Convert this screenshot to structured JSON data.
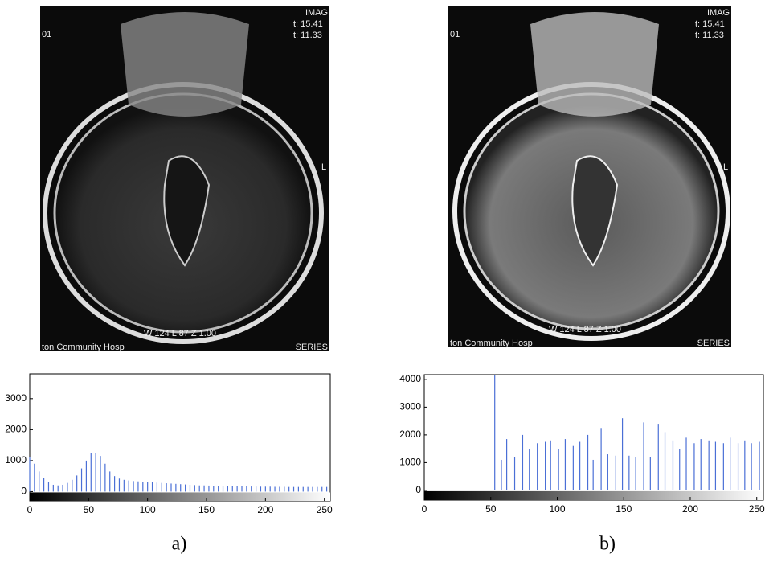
{
  "panels": [
    {
      "caption": "a)",
      "image_text": [
        "IMAG",
        "t: 15.41",
        "t: 11.33",
        "01",
        "L",
        "W 124  L 87  Z 1.00",
        "ton Community Hosp",
        "SERIES"
      ]
    },
    {
      "caption": "b)",
      "image_text": [
        "IMAG",
        "t: 15.41",
        "t: 11.33",
        "01",
        "L",
        "W 124  L 87  Z 1.00",
        "ton Community Hosp",
        "SERIES"
      ]
    }
  ],
  "chart_data": [
    {
      "type": "stem",
      "color": "#4a6fd6",
      "x": [
        0,
        4,
        8,
        12,
        16,
        20,
        24,
        28,
        32,
        36,
        40,
        44,
        48,
        52,
        56,
        60,
        64,
        68,
        72,
        76,
        80,
        84,
        88,
        92,
        96,
        100,
        104,
        108,
        112,
        116,
        120,
        124,
        128,
        132,
        136,
        140,
        144,
        148,
        152,
        156,
        160,
        164,
        168,
        172,
        176,
        180,
        184,
        188,
        192,
        196,
        200,
        204,
        208,
        212,
        216,
        220,
        224,
        228,
        232,
        236,
        240,
        244,
        248,
        252
      ],
      "values": [
        1100,
        900,
        650,
        450,
        300,
        220,
        200,
        220,
        280,
        380,
        520,
        750,
        1000,
        1250,
        1250,
        1150,
        900,
        650,
        500,
        420,
        380,
        360,
        340,
        330,
        320,
        310,
        300,
        290,
        280,
        270,
        260,
        250,
        240,
        230,
        220,
        210,
        200,
        200,
        195,
        190,
        185,
        180,
        180,
        175,
        175,
        170,
        170,
        165,
        165,
        160,
        160,
        160,
        155,
        155,
        155,
        150,
        150,
        150,
        150,
        150,
        150,
        150,
        150,
        150
      ],
      "xlim": [
        0,
        255
      ],
      "ylim": [
        -300,
        3800
      ],
      "xticks": [
        0,
        50,
        100,
        150,
        200,
        250
      ],
      "yticks": [
        0,
        1000,
        2000,
        3000
      ]
    },
    {
      "type": "stem",
      "color": "#4a6fd6",
      "x": [
        53,
        58,
        62,
        68,
        74,
        79,
        85,
        91,
        95,
        101,
        106,
        112,
        117,
        123,
        127,
        133,
        138,
        144,
        149,
        154,
        159,
        165,
        170,
        176,
        181,
        187,
        192,
        197,
        203,
        208,
        214,
        219,
        225,
        230,
        236,
        241,
        246,
        252
      ],
      "values": [
        4150,
        1100,
        1850,
        1200,
        2000,
        1500,
        1700,
        1750,
        1800,
        1500,
        1850,
        1600,
        1750,
        2000,
        1100,
        2250,
        1300,
        1250,
        2600,
        1250,
        1200,
        2450,
        1200,
        2400,
        2100,
        1800,
        1500,
        1900,
        1700,
        1850,
        1800,
        1750,
        1700,
        1900,
        1700,
        1800,
        1700,
        1750
      ],
      "xlim": [
        0,
        255
      ],
      "ylim": [
        -350,
        4170
      ],
      "xticks": [
        0,
        50,
        100,
        150,
        200,
        250
      ],
      "yticks": [
        0,
        1000,
        2000,
        3000,
        4000
      ]
    }
  ]
}
